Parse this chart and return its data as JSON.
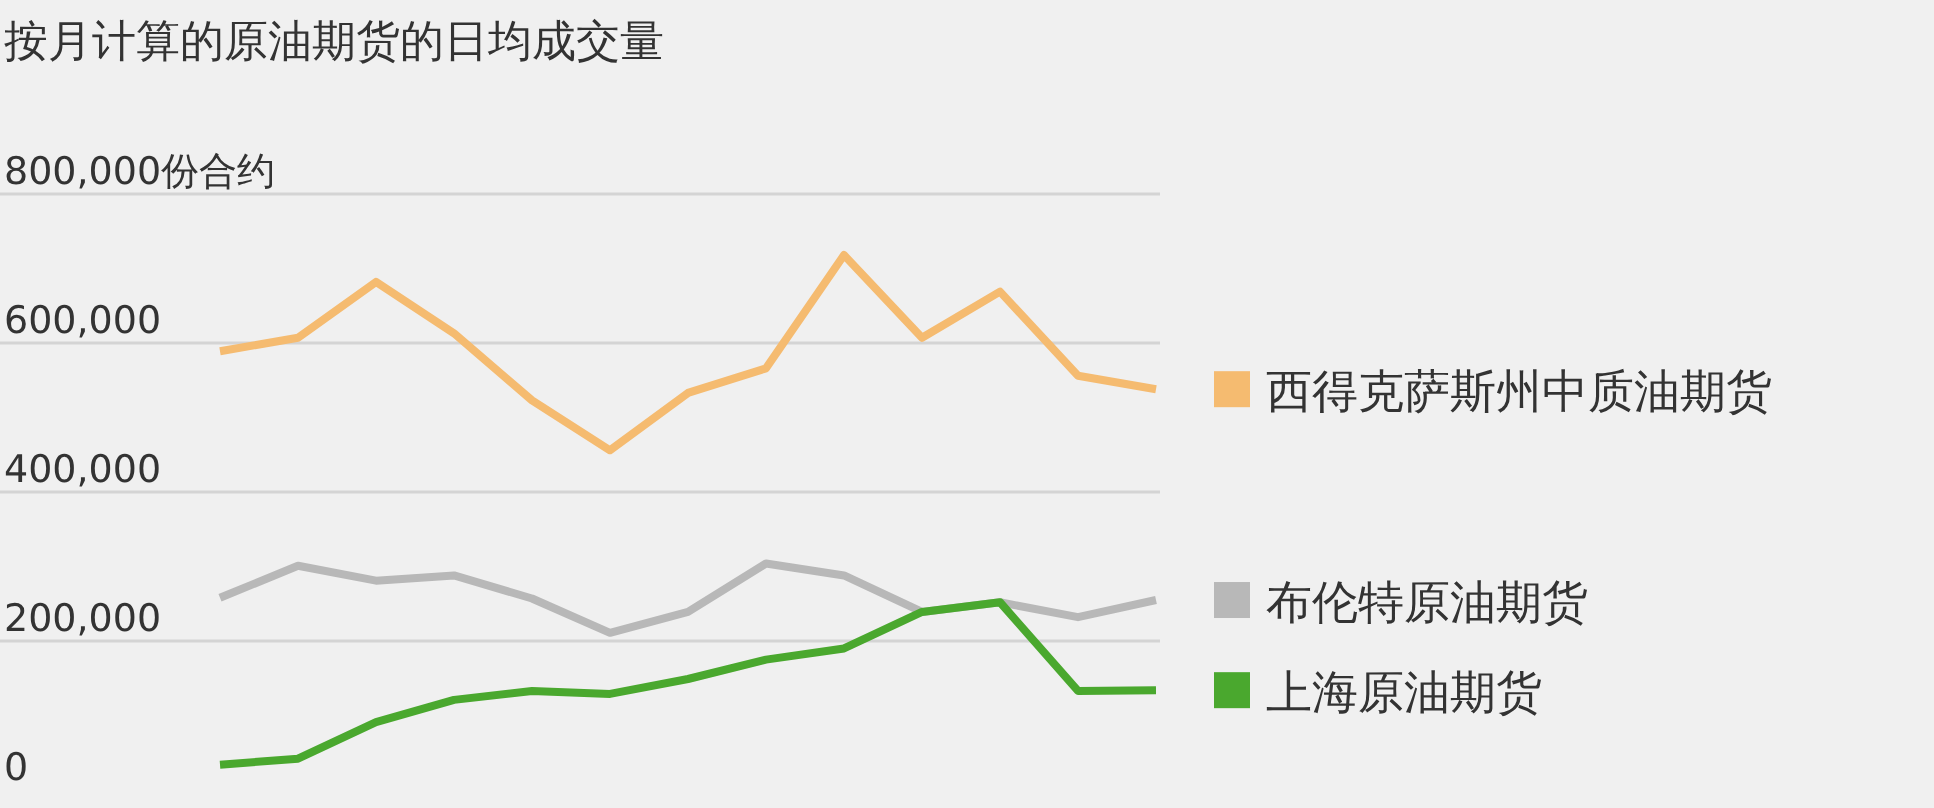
{
  "chart_data": {
    "type": "line",
    "title": "按月计算的原油期货的日均成交量",
    "categories": [
      null,
      null,
      null,
      null,
      null,
      null,
      null,
      null,
      null,
      null,
      null,
      null,
      null
    ],
    "series": [
      {
        "name": "西得克萨斯州中质油期货",
        "color": "#f5bb70",
        "values": [
          589000,
          607000,
          682000,
          613000,
          523000,
          456000,
          533000,
          566000,
          718000,
          607000,
          669000,
          556000,
          538000
        ]
      },
      {
        "name": "布伦特原油期货",
        "color": "#b8b8b8",
        "values": [
          258000,
          301000,
          281000,
          288000,
          257000,
          211000,
          239000,
          304000,
          288000,
          239000,
          252000,
          232000,
          255000
        ]
      },
      {
        "name": "上海原油期货",
        "color": "#4aa82e",
        "values": [
          34000,
          42000,
          91000,
          121000,
          133000,
          129000,
          149000,
          175000,
          190000,
          239000,
          252000,
          133000,
          134000
        ]
      }
    ],
    "ylim": [
      0,
      800000
    ],
    "yticks": [
      0,
      {
        "value": 200000,
        "label": "200,000"
      },
      {
        "value": 400000,
        "label": "400,000"
      },
      {
        "value": 600000,
        "label": "600,000"
      },
      {
        "value": 800000,
        "label": "800,000份合约"
      }
    ],
    "grid": "y",
    "legend": "right",
    "tick_labels": "y"
  }
}
